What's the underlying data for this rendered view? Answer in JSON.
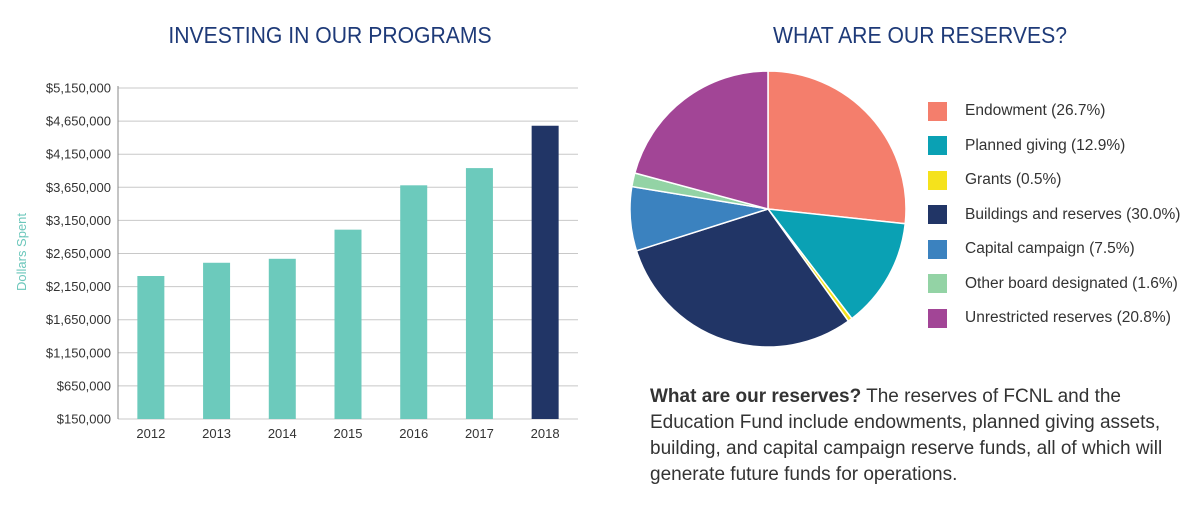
{
  "chart_data": [
    {
      "type": "bar",
      "title": "INVESTING IN OUR PROGRAMS",
      "xlabel": "",
      "ylabel": "Dollars Spent",
      "categories": [
        "2012",
        "2013",
        "2014",
        "2015",
        "2016",
        "2017",
        "2018"
      ],
      "values": [
        2310000,
        2510000,
        2570000,
        3010000,
        3680000,
        3940000,
        4580000
      ],
      "highlight_index": 6,
      "ylim": [
        150000,
        5150000
      ],
      "yticks": [
        150000,
        650000,
        1150000,
        1650000,
        2150000,
        2650000,
        3150000,
        3650000,
        4150000,
        4650000,
        5150000
      ],
      "ytick_labels": [
        "$150,000",
        "$650,000",
        "$1,150,000",
        "$1,650,000",
        "$2,150,000",
        "$2,650,000",
        "$3,150,000",
        "$3,650,000",
        "$4,150,000",
        "$4,650,000",
        "$5,150,000"
      ],
      "grid": true,
      "colors": {
        "bar": "#6ccabc",
        "highlight": "#213566",
        "grid": "#c8c8c8",
        "axis": "#888888"
      }
    },
    {
      "type": "pie",
      "title": "WHAT ARE OUR RESERVES?",
      "legend_position": "right",
      "slices": [
        {
          "label": "Endowment (26.7%)",
          "value": 26.7,
          "color": "#f47e6c"
        },
        {
          "label": "Planned giving (12.9%)",
          "value": 12.9,
          "color": "#0aa1b4"
        },
        {
          "label": "Grants (0.5%)",
          "value": 0.5,
          "color": "#f5e21c"
        },
        {
          "label": "Buildings and reserves (30.0%)",
          "value": 30.0,
          "color": "#213566"
        },
        {
          "label": "Capital campaign (7.5%)",
          "value": 7.5,
          "color": "#3b82bf"
        },
        {
          "label": "Other board designated (1.6%)",
          "value": 1.6,
          "color": "#93d3a5"
        },
        {
          "label": "Unrestricted reserves (20.8%)",
          "value": 20.8,
          "color": "#a24596"
        }
      ]
    }
  ],
  "note": {
    "lead": "What are our reserves?",
    "body": " The reserves of FCNL and the Education Fund include endowments, planned giving assets, building, and capital campaign reserve funds, all of which will generate future funds for operations."
  }
}
